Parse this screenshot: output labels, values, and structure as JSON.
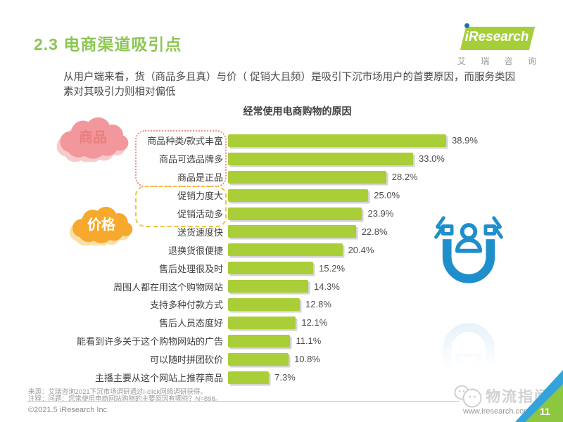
{
  "page": {
    "title": "2.3 电商渠道吸引点",
    "intro_line1": "从用户端来看，货（商品多且真）与价（ 促销大且频）是吸引下沉市场用户的首要原因，而服务类因",
    "intro_line2": "素对其吸引力则相对偏低",
    "source_line1": "来源：艾瑞咨询2021下沉市场调研通过i-click网络调研获得。",
    "source_line2": "注释：问题：您常使用电商网站购物的主要原因有哪些？N=898。",
    "copyright": "©2021.5 iResearch Inc.",
    "website": "www.iresearch.com.cn",
    "watermark": "物流指闻",
    "page_number": "11"
  },
  "logo": {
    "brand": "iResearch",
    "subtitle": "艾 瑞 咨 询"
  },
  "group_labels": {
    "goods": "商品",
    "price": "价格"
  },
  "colors": {
    "heading_green": "#8CC653",
    "bar_green": "#A9CE38",
    "cloud_pink": "#F2979B",
    "cloud_orange": "#F6A92D",
    "magnet_blue": "#1F8FCB",
    "triangle_teal": "#33A3DC",
    "triangle_green": "#8DC63F",
    "dotted_box_pink": "#ED8F8F",
    "dashed_box_yellow": "#EEC53F"
  },
  "chart_data": {
    "type": "bar",
    "orientation": "horizontal",
    "title": "经常使用电商购物的原因",
    "unit": "%",
    "xlim": [
      0,
      40
    ],
    "grid": false,
    "legend": false,
    "bar_color": "#A9CE38",
    "categories": [
      "商品种类/款式丰富",
      "商品可选品牌多",
      "商品是正品",
      "促销力度大",
      "促销活动多",
      "送货速度快",
      "退换货很便捷",
      "售后处理很及时",
      "周围人都在用这个购物网站",
      "支持多种付款方式",
      "售后人员态度好",
      "能看到许多关于这个购物网站的广告",
      "可以随时拼团砍价",
      "主播主要从这个网站上推荐商品"
    ],
    "values": [
      38.9,
      33.0,
      28.2,
      25.0,
      23.9,
      22.8,
      20.4,
      15.2,
      14.3,
      12.8,
      12.1,
      11.1,
      10.8,
      7.3
    ],
    "value_labels": [
      "38.9%",
      "33.0%",
      "28.2%",
      "25.0%",
      "23.9%",
      "22.8%",
      "20.4%",
      "15.2%",
      "14.3%",
      "12.8%",
      "12.1%",
      "11.1%",
      "10.8%",
      "7.3%"
    ],
    "annotations": [
      {
        "label": "商品",
        "rows": [
          0,
          1,
          2
        ],
        "style": "pink-dotted-box"
      },
      {
        "label": "价格",
        "rows": [
          3,
          4
        ],
        "style": "yellow-dashed-box"
      }
    ]
  }
}
